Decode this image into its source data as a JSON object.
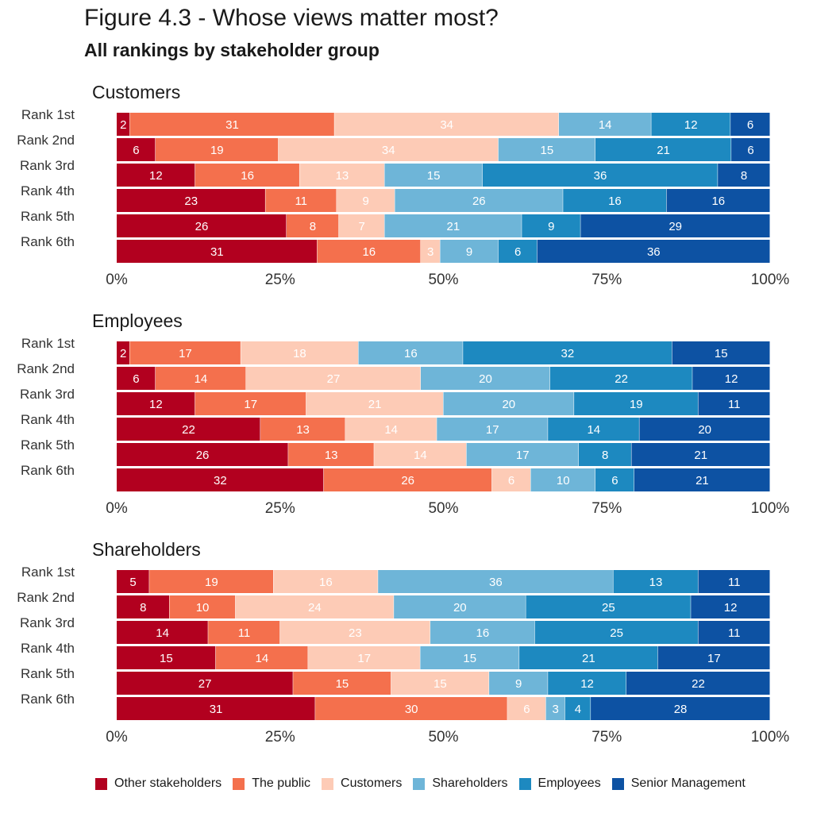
{
  "title": "Figure 4.3 - Whose views matter most?",
  "subtitle": "All rankings by stakeholder group",
  "chart_data": [
    {
      "type": "bar",
      "orientation": "horizontal",
      "stacked": "percent",
      "title": "Customers",
      "categories": [
        "Rank 1st",
        "Rank 2nd",
        "Rank 3rd",
        "Rank 4th",
        "Rank 5th",
        "Rank 6th"
      ],
      "series": [
        {
          "name": "Other stakeholders",
          "values": [
            2,
            6,
            12,
            23,
            26,
            31
          ]
        },
        {
          "name": "The public",
          "values": [
            31,
            19,
            16,
            11,
            8,
            16
          ]
        },
        {
          "name": "Customers",
          "values": [
            34,
            34,
            13,
            9,
            7,
            3
          ]
        },
        {
          "name": "Shareholders",
          "values": [
            14,
            15,
            15,
            26,
            21,
            9
          ]
        },
        {
          "name": "Employees",
          "values": [
            12,
            21,
            36,
            16,
            9,
            6
          ]
        },
        {
          "name": "Senior Management",
          "values": [
            6,
            6,
            8,
            16,
            29,
            36
          ]
        }
      ],
      "x_ticks": [
        "0%",
        "25%",
        "50%",
        "75%",
        "100%"
      ],
      "xlim": [
        0,
        100
      ]
    },
    {
      "type": "bar",
      "orientation": "horizontal",
      "stacked": "percent",
      "title": "Employees",
      "categories": [
        "Rank 1st",
        "Rank 2nd",
        "Rank 3rd",
        "Rank 4th",
        "Rank 5th",
        "Rank 6th"
      ],
      "series": [
        {
          "name": "Other stakeholders",
          "values": [
            2,
            6,
            12,
            22,
            26,
            32
          ]
        },
        {
          "name": "The public",
          "values": [
            17,
            14,
            17,
            13,
            13,
            26
          ]
        },
        {
          "name": "Customers",
          "values": [
            18,
            27,
            21,
            14,
            14,
            6
          ]
        },
        {
          "name": "Shareholders",
          "values": [
            16,
            20,
            20,
            17,
            17,
            10
          ]
        },
        {
          "name": "Employees",
          "values": [
            32,
            22,
            19,
            14,
            8,
            6
          ]
        },
        {
          "name": "Senior Management",
          "values": [
            15,
            12,
            11,
            20,
            21,
            21
          ]
        }
      ],
      "x_ticks": [
        "0%",
        "25%",
        "50%",
        "75%",
        "100%"
      ],
      "xlim": [
        0,
        100
      ]
    },
    {
      "type": "bar",
      "orientation": "horizontal",
      "stacked": "percent",
      "title": "Shareholders",
      "categories": [
        "Rank 1st",
        "Rank 2nd",
        "Rank 3rd",
        "Rank 4th",
        "Rank 5th",
        "Rank 6th"
      ],
      "series": [
        {
          "name": "Other stakeholders",
          "values": [
            5,
            8,
            14,
            15,
            27,
            31
          ]
        },
        {
          "name": "The public",
          "values": [
            19,
            10,
            11,
            14,
            15,
            30
          ]
        },
        {
          "name": "Customers",
          "values": [
            16,
            24,
            23,
            17,
            15,
            6
          ]
        },
        {
          "name": "Shareholders",
          "values": [
            36,
            20,
            16,
            15,
            9,
            3
          ]
        },
        {
          "name": "Employees",
          "values": [
            13,
            25,
            25,
            21,
            12,
            4
          ]
        },
        {
          "name": "Senior Management",
          "values": [
            11,
            12,
            11,
            17,
            22,
            28
          ]
        }
      ],
      "x_ticks": [
        "0%",
        "25%",
        "50%",
        "75%",
        "100%"
      ],
      "xlim": [
        0,
        100
      ]
    }
  ],
  "legend": {
    "position": "bottom",
    "items": [
      {
        "label": "Other stakeholders",
        "color": "#b2001f"
      },
      {
        "label": "The public",
        "color": "#f4704d"
      },
      {
        "label": "Customers",
        "color": "#fdcbb6"
      },
      {
        "label": "Shareholders",
        "color": "#6eb5d8"
      },
      {
        "label": "Employees",
        "color": "#1d89c0"
      },
      {
        "label": "Senior Management",
        "color": "#0d52a3"
      }
    ]
  },
  "colors": [
    "#b2001f",
    "#f4704d",
    "#fdcbb6",
    "#6eb5d8",
    "#1d89c0",
    "#0d52a3"
  ]
}
